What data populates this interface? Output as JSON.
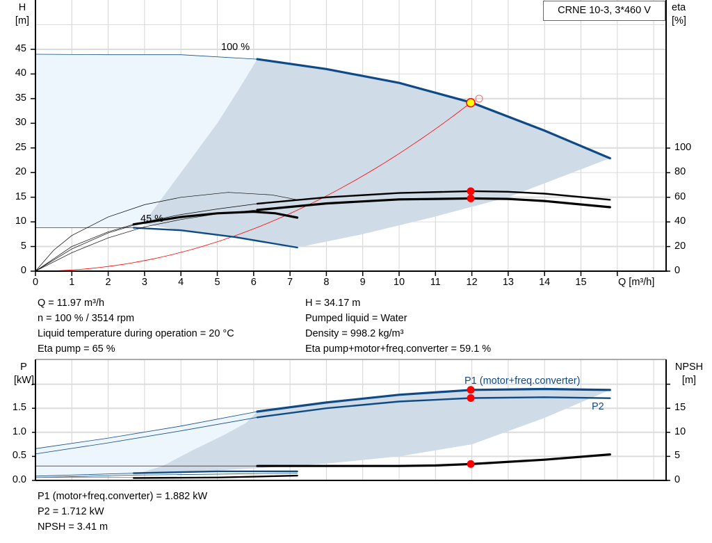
{
  "chart_data": [
    {
      "type": "line",
      "title": "CRNE 10-3, 3*460 V",
      "xlabel": "Q [m³/h]",
      "ylabel": "H\n[m]",
      "y2label": "eta\n[%]",
      "xlim": [
        0,
        17
      ],
      "ylim": [
        0,
        50
      ],
      "y2lim": [
        0,
        100
      ],
      "x_ticks": [
        0,
        1,
        2,
        3,
        4,
        5,
        6,
        7,
        8,
        9,
        10,
        11,
        12,
        13,
        14,
        15
      ],
      "y_ticks": [
        0,
        5,
        10,
        15,
        20,
        25,
        30,
        35,
        40,
        45
      ],
      "y2_ticks": [
        0,
        20,
        40,
        60,
        80,
        100
      ],
      "grid": true,
      "curve_labels": {
        "max_speed": "100 %",
        "min_speed": "45 %"
      },
      "colors": {
        "head": "#0e4a86",
        "eta": "#000000",
        "system": "#ff0000",
        "region_dark": "#cfdbe6",
        "region_light": "#edf5fd",
        "op_point": "#ffff00"
      },
      "series": [
        {
          "key": "h100_thin",
          "axis": "H",
          "style": "thin-blue",
          "points": [
            [
              0,
              44
            ],
            [
              2,
              43.9
            ],
            [
              4,
              43.9
            ],
            [
              6.1,
              43.0
            ]
          ]
        },
        {
          "key": "h100",
          "axis": "H",
          "style": "thick-blue",
          "points": [
            [
              6.1,
              43.0
            ],
            [
              8,
              41
            ],
            [
              10,
              38.2
            ],
            [
              12,
              34.17
            ],
            [
              14,
              28.5
            ],
            [
              15.8,
              22.9
            ]
          ]
        },
        {
          "key": "h45_thin",
          "axis": "H",
          "style": "thin-blue",
          "points": [
            [
              0,
              8.8
            ],
            [
              2.7,
              8.8
            ]
          ]
        },
        {
          "key": "h45",
          "axis": "H",
          "style": "mid-blue",
          "points": [
            [
              2.7,
              8.8
            ],
            [
              4,
              8.3
            ],
            [
              5.5,
              6.9
            ],
            [
              7.2,
              4.8
            ]
          ]
        },
        {
          "key": "eta_pump_thin",
          "axis": "eta",
          "style": "thin-black",
          "points": [
            [
              0,
              0
            ],
            [
              1,
              18
            ],
            [
              2,
              31
            ],
            [
              3,
              40
            ],
            [
              4,
              46
            ],
            [
              5,
              50.5
            ],
            [
              6.1,
              54.8
            ]
          ]
        },
        {
          "key": "eta_pump",
          "axis": "eta",
          "style": "mid-black",
          "points": [
            [
              6.1,
              54.8
            ],
            [
              8,
              60
            ],
            [
              10,
              63.5
            ],
            [
              12,
              65
            ],
            [
              13,
              64.5
            ],
            [
              14,
              63
            ],
            [
              15.8,
              58
            ]
          ]
        },
        {
          "key": "eta_total_thin",
          "axis": "eta",
          "style": "thin-black",
          "points": [
            [
              0,
              0
            ],
            [
              1,
              15
            ],
            [
              2,
              27
            ],
            [
              3,
              36
            ],
            [
              4,
              42
            ],
            [
              5,
              46.5
            ],
            [
              6.1,
              49.7
            ]
          ]
        },
        {
          "key": "eta_total",
          "axis": "eta",
          "style": "thick-black",
          "points": [
            [
              6.1,
              49.7
            ],
            [
              8,
              55
            ],
            [
              10,
              58.3
            ],
            [
              12,
              59.1
            ],
            [
              13,
              58.7
            ],
            [
              14,
              57
            ],
            [
              15.8,
              52
            ]
          ]
        },
        {
          "key": "eta45_thin",
          "axis": "eta",
          "style": "thin-black",
          "points": [
            [
              0,
              0
            ],
            [
              0.5,
              17
            ],
            [
              1,
              29
            ],
            [
              2,
              44
            ],
            [
              3,
              54
            ],
            [
              4,
              60
            ],
            [
              5.3,
              64
            ],
            [
              6.5,
              62
            ],
            [
              7.2,
              58
            ]
          ]
        },
        {
          "key": "eta45_ext",
          "axis": "eta",
          "style": "thin-black",
          "points": [
            [
              0,
              0
            ],
            [
              1,
              20
            ],
            [
              2,
              32
            ],
            [
              2.7,
              38
            ]
          ]
        },
        {
          "key": "eta45",
          "axis": "eta",
          "style": "thick-black",
          "points": [
            [
              2.7,
              38
            ],
            [
              4,
              44
            ],
            [
              5,
              47
            ],
            [
              6,
              48.3
            ],
            [
              6.6,
              47
            ],
            [
              7.2,
              43.5
            ]
          ]
        }
      ],
      "regions": {
        "light": [
          [
            0,
            44
          ],
          [
            2,
            43.9
          ],
          [
            4,
            43.9
          ],
          [
            6.1,
            43.0
          ],
          [
            5.6,
            37
          ],
          [
            5,
            30
          ],
          [
            4,
            20
          ],
          [
            3,
            10
          ],
          [
            2.7,
            8.8
          ],
          [
            0,
            8.8
          ]
        ],
        "dark": [
          [
            6.1,
            43.0
          ],
          [
            8,
            41
          ],
          [
            10,
            38.2
          ],
          [
            12,
            34.17
          ],
          [
            14,
            28.5
          ],
          [
            15.8,
            22.9
          ],
          [
            13,
            15
          ],
          [
            10.9,
            10.9
          ],
          [
            9,
            7.5
          ],
          [
            7.2,
            4.8
          ],
          [
            5.5,
            6.9
          ],
          [
            4,
            8.3
          ],
          [
            3,
            9.5
          ],
          [
            3,
            10
          ],
          [
            4,
            20
          ],
          [
            5,
            30
          ],
          [
            5.6,
            37
          ]
        ]
      },
      "system_curve": {
        "q_max": 12.1,
        "h_at_op": 34.17
      },
      "operating_point": {
        "Q": 11.97,
        "H": 34.17,
        "eta_pump": 65,
        "eta_total": 59.1
      },
      "setpoint_marker": {
        "Q": 12.2,
        "H": 35
      }
    },
    {
      "type": "line",
      "ylabel": "P\n[kW]",
      "y2label": "NPSH\n[m]",
      "xlim": [
        0,
        17
      ],
      "ylim": [
        0,
        2
      ],
      "y2lim": [
        0,
        20
      ],
      "y_ticks": [
        "0.0",
        "0.5",
        "1.0",
        "1.5"
      ],
      "y2_ticks": [
        0,
        5,
        10,
        15
      ],
      "grid": true,
      "curve_labels": {
        "p1": "P1 (motor+freq.converter)",
        "p2": "P2"
      },
      "series": [
        {
          "key": "p1_thin",
          "axis": "P",
          "style": "thin-blue",
          "points": [
            [
              0,
              0.66
            ],
            [
              2,
              0.88
            ],
            [
              4,
              1.13
            ],
            [
              6.1,
              1.43
            ]
          ]
        },
        {
          "key": "p1",
          "axis": "P",
          "style": "thick-blue",
          "points": [
            [
              6.1,
              1.43
            ],
            [
              8,
              1.62
            ],
            [
              10,
              1.78
            ],
            [
              12,
              1.882
            ],
            [
              14,
              1.9
            ],
            [
              15.8,
              1.88
            ]
          ]
        },
        {
          "key": "p2_thin",
          "axis": "P",
          "style": "thin-blue",
          "points": [
            [
              0,
              0.55
            ],
            [
              2,
              0.78
            ],
            [
              4,
              1.03
            ],
            [
              6.1,
              1.31
            ]
          ]
        },
        {
          "key": "p2",
          "axis": "P",
          "style": "mid-blue",
          "points": [
            [
              6.1,
              1.31
            ],
            [
              8,
              1.5
            ],
            [
              10,
              1.64
            ],
            [
              12,
              1.712
            ],
            [
              14,
              1.73
            ],
            [
              15.8,
              1.71
            ]
          ]
        },
        {
          "key": "npsh_thin",
          "axis": "NPSH",
          "style": "thin-black",
          "points": [
            [
              0,
              3.0
            ],
            [
              6.1,
              3.0
            ]
          ]
        },
        {
          "key": "npsh",
          "axis": "NPSH",
          "style": "thick-black",
          "points": [
            [
              6.1,
              3.0
            ],
            [
              10,
              3.0
            ],
            [
              11,
              3.1
            ],
            [
              12,
              3.41
            ],
            [
              14,
              4.3
            ],
            [
              15.8,
              5.4
            ]
          ]
        },
        {
          "key": "p1_45_thin",
          "axis": "P",
          "style": "thin-blue",
          "points": [
            [
              0,
              0.09
            ],
            [
              2.7,
              0.15
            ]
          ]
        },
        {
          "key": "p1_45",
          "axis": "P",
          "style": "mid-blue",
          "points": [
            [
              2.7,
              0.15
            ],
            [
              5,
              0.19
            ],
            [
              7.2,
              0.19
            ]
          ]
        },
        {
          "key": "p2_45",
          "axis": "P",
          "style": "thin-blue",
          "points": [
            [
              0,
              0.06
            ],
            [
              2.7,
              0.11
            ],
            [
              7.2,
              0.15
            ]
          ]
        },
        {
          "key": "npsh45_thin",
          "axis": "NPSH",
          "style": "thin-gray",
          "points": [
            [
              0,
              0.6
            ],
            [
              2.7,
              0.6
            ]
          ]
        },
        {
          "key": "npsh45",
          "axis": "NPSH",
          "style": "mid-black",
          "points": [
            [
              2.7,
              0.5
            ],
            [
              5,
              0.6
            ],
            [
              7.2,
              1.0
            ]
          ]
        }
      ],
      "regions": {
        "light": [
          [
            0,
            0.66
          ],
          [
            2,
            0.88
          ],
          [
            4,
            1.13
          ],
          [
            6.1,
            1.43
          ],
          [
            5.8,
            1.2
          ],
          [
            5.2,
            0.95
          ],
          [
            4.3,
            0.62
          ],
          [
            3.5,
            0.3
          ],
          [
            2.7,
            0.12
          ],
          [
            0,
            0.07
          ]
        ],
        "dark": [
          [
            6.1,
            1.43
          ],
          [
            8,
            1.62
          ],
          [
            10,
            1.78
          ],
          [
            12,
            1.882
          ],
          [
            14,
            1.9
          ],
          [
            15.8,
            1.88
          ],
          [
            14,
            1.3
          ],
          [
            12,
            0.75
          ],
          [
            10,
            0.5
          ],
          [
            8,
            0.35
          ],
          [
            6,
            0.25
          ],
          [
            4,
            0.17
          ],
          [
            2.7,
            0.12
          ],
          [
            3.5,
            0.3
          ],
          [
            4.3,
            0.62
          ],
          [
            5.2,
            0.95
          ],
          [
            5.8,
            1.2
          ]
        ]
      },
      "operating_point": {
        "Q": 11.97,
        "P1": 1.882,
        "P2": 1.712,
        "NPSH": 3.41
      }
    }
  ],
  "info_top": {
    "left": [
      "Q = 11.97 m³/h",
      "n = 100 % / 3514 rpm",
      "Liquid temperature during operation = 20 °C",
      "Eta pump = 65 %"
    ],
    "right": [
      "H = 34.17 m",
      "Pumped liquid = Water",
      "Density = 998.2 kg/m³",
      "Eta pump+motor+freq.converter = 59.1 %"
    ]
  },
  "info_bottom": [
    "P1 (motor+freq.converter) = 1.882 kW",
    "P2 = 1.712 kW",
    "NPSH = 3.41 m"
  ]
}
